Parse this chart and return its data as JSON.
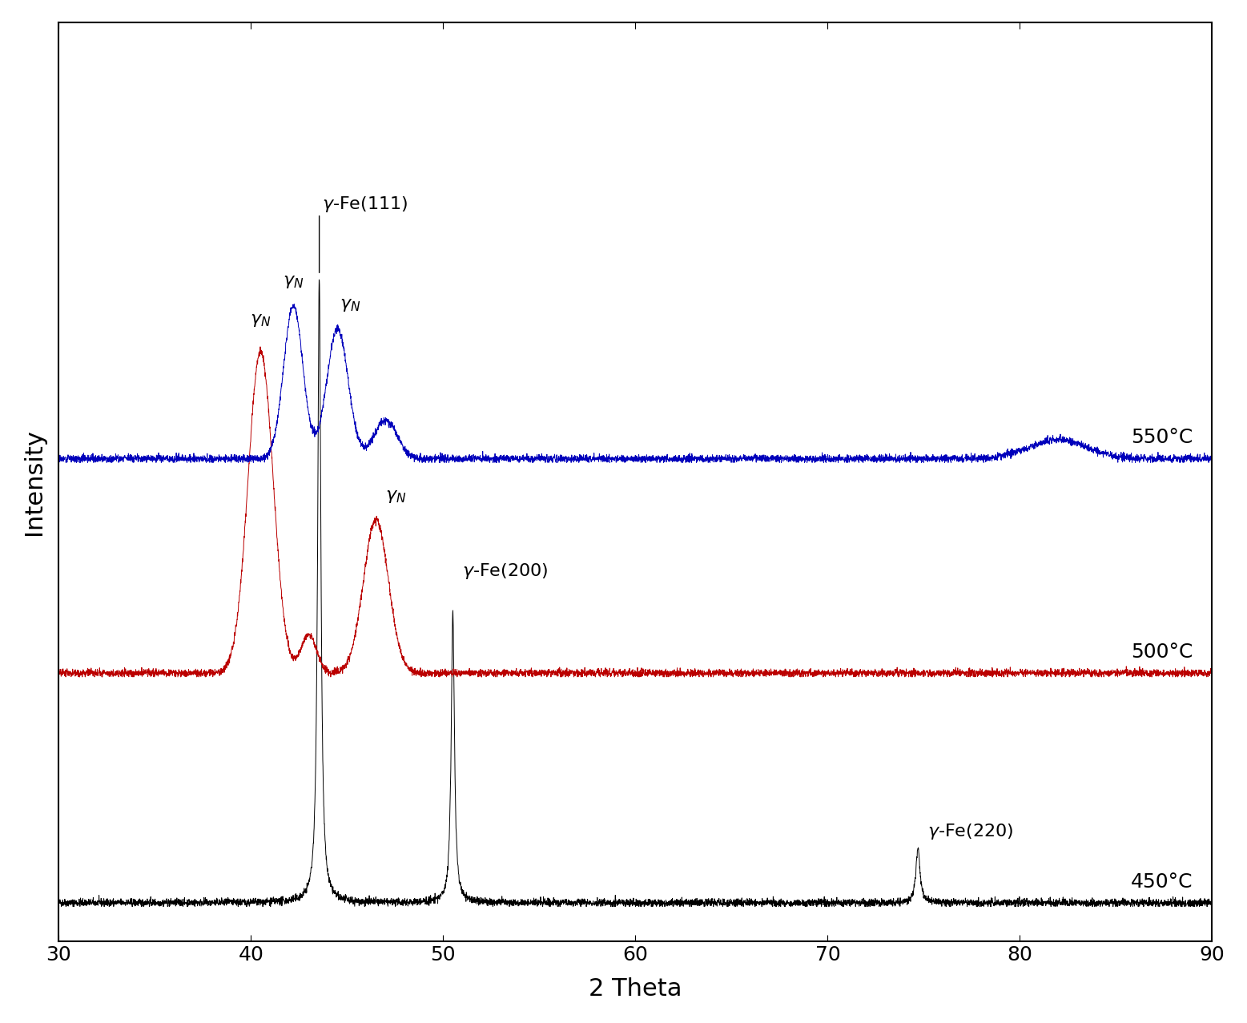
{
  "xlim": [
    30,
    90
  ],
  "xlabel": "2 Theta",
  "ylabel": "Intensity",
  "xlabel_fontsize": 22,
  "ylabel_fontsize": 22,
  "tick_fontsize": 18,
  "annotation_fontsize": 16,
  "background_color": "#ffffff",
  "line_colors": {
    "black": "#000000",
    "red": "#bb0000",
    "blue": "#0000bb"
  },
  "temperatures": [
    "450°C",
    "500°C",
    "550°C"
  ],
  "offsets": {
    "black": 0.0,
    "red": 0.3,
    "blue": 0.58
  },
  "ylim": [
    -0.05,
    1.15
  ]
}
